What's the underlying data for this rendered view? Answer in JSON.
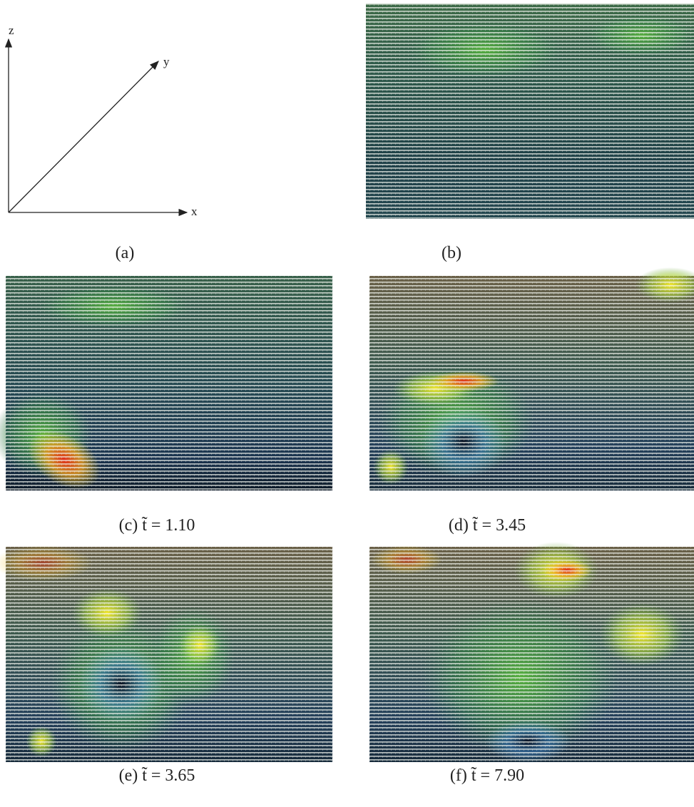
{
  "axis_labels": {
    "z": "z",
    "y": "y",
    "x": "x"
  },
  "captions": [
    "(a)",
    "(b)",
    "(c) t̃ = 1.10",
    "(d) t̃ = 3.45",
    "(e) t̃ = 3.65",
    "(f) t̃ = 7.90"
  ]
}
